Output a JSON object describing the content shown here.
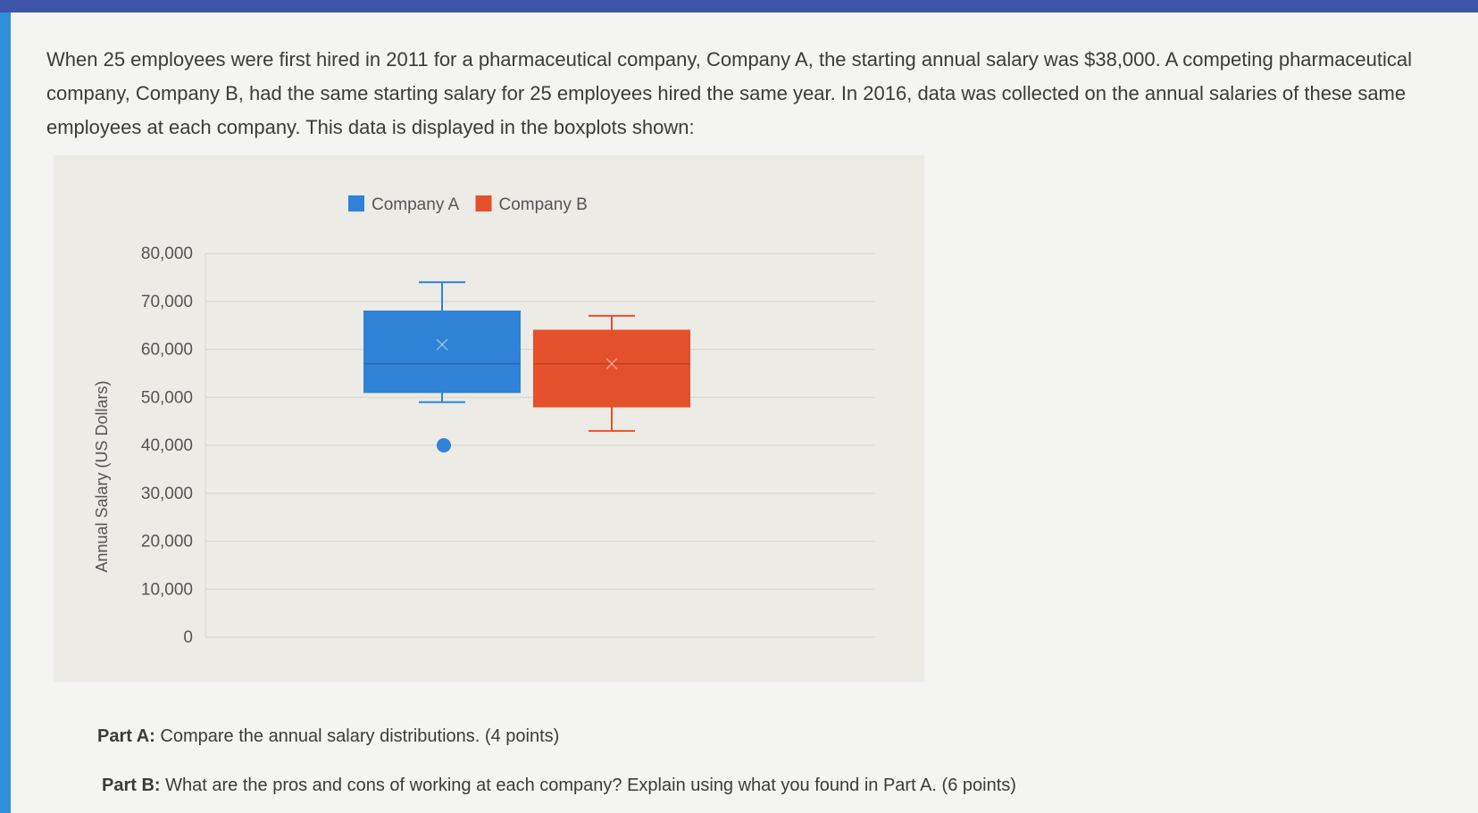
{
  "question": {
    "text": "When 25 employees were first hired in 2011 for a pharmaceutical company, Company A, the starting annual salary was $38,000. A competing pharmaceutical company, Company B, had the same starting salary for 25 employees hired the same year. In 2016, data was collected on the annual salaries of these same employees at each company. This data is displayed in the boxplots shown:"
  },
  "parts": [
    {
      "label": "Part A:",
      "text": "Compare the annual salary distributions. (4 points)"
    },
    {
      "label": "Part B:",
      "text": "What are the pros and cons of working at each company? Explain using what you found in Part A. (6 points)"
    }
  ],
  "chart_data": {
    "type": "boxplot",
    "title": "",
    "xlabel": "",
    "ylabel": "Annual Salary (US Dollars)",
    "ylim": [
      0,
      80000
    ],
    "y_ticks": [
      0,
      10000,
      20000,
      30000,
      40000,
      50000,
      60000,
      70000,
      80000
    ],
    "y_tick_labels": [
      "0",
      "10,000",
      "20,000",
      "30,000",
      "40,000",
      "50,000",
      "60,000",
      "70,000",
      "80,000"
    ],
    "grid": true,
    "legend_position": "top-center",
    "series": [
      {
        "name": "Company A",
        "color": "#2f82d6",
        "min": 49000,
        "q1": 51000,
        "median": 57000,
        "q3": 68000,
        "max": 74000,
        "mean": 61000,
        "outliers": [
          40000
        ]
      },
      {
        "name": "Company B",
        "color": "#e5502c",
        "min": 43000,
        "q1": 48000,
        "median": 57000,
        "q3": 64000,
        "max": 67000,
        "mean": 57000,
        "outliers": []
      }
    ]
  }
}
